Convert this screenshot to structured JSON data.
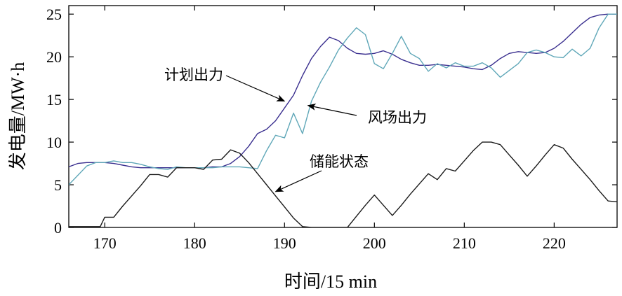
{
  "chart_data": {
    "type": "line",
    "xlabel": "时间/15 min",
    "ylabel": "发电量/MW·h",
    "xlim": [
      166,
      227
    ],
    "ylim": [
      0,
      26
    ],
    "xticks": [
      170,
      180,
      190,
      200,
      210,
      220
    ],
    "yticks": [
      0,
      5,
      10,
      15,
      20,
      25
    ],
    "grid": false,
    "legend": "none",
    "series": [
      {
        "name": "计划出力",
        "color": "#3a2f8f",
        "x": [
          166,
          167,
          168,
          169,
          170,
          171,
          172,
          173,
          174,
          175,
          176,
          177,
          178,
          179,
          180,
          181,
          182,
          183,
          184,
          185,
          186,
          187,
          188,
          189,
          190,
          191,
          192,
          193,
          194,
          195,
          196,
          197,
          198,
          199,
          200,
          201,
          202,
          203,
          204,
          205,
          206,
          207,
          208,
          209,
          210,
          211,
          212,
          213,
          214,
          215,
          216,
          217,
          218,
          219,
          220,
          221,
          222,
          223,
          224,
          225,
          226,
          227
        ],
        "y": [
          7.1,
          7.5,
          7.6,
          7.6,
          7.6,
          7.5,
          7.3,
          7.1,
          7.0,
          7.0,
          7.0,
          7.0,
          7.0,
          7.0,
          7.0,
          7.0,
          7.1,
          7.1,
          7.5,
          8.3,
          9.5,
          11.0,
          11.5,
          12.5,
          14.0,
          15.5,
          17.8,
          19.8,
          21.2,
          22.3,
          21.9,
          21.0,
          20.4,
          20.3,
          20.4,
          20.7,
          20.3,
          19.7,
          19.3,
          19.0,
          19.0,
          19.1,
          19.0,
          18.9,
          18.8,
          18.6,
          18.5,
          19.0,
          19.8,
          20.4,
          20.6,
          20.5,
          20.4,
          20.5,
          21.0,
          21.8,
          22.8,
          23.8,
          24.6,
          24.9,
          25.0,
          25.0
        ]
      },
      {
        "name": "风场出力",
        "color": "#5fa7b8",
        "x": [
          166,
          167,
          168,
          169,
          170,
          171,
          172,
          173,
          174,
          175,
          176,
          177,
          178,
          179,
          180,
          181,
          182,
          183,
          184,
          185,
          186,
          187,
          188,
          189,
          190,
          191,
          192,
          193,
          194,
          195,
          196,
          197,
          198,
          199,
          200,
          201,
          202,
          203,
          204,
          205,
          206,
          207,
          208,
          209,
          210,
          211,
          212,
          213,
          214,
          215,
          216,
          217,
          218,
          219,
          220,
          221,
          222,
          223,
          224,
          225,
          226,
          227
        ],
        "y": [
          5.0,
          6.1,
          7.2,
          7.6,
          7.6,
          7.8,
          7.6,
          7.6,
          7.4,
          7.1,
          6.9,
          6.8,
          7.1,
          7.0,
          7.0,
          7.0,
          7.0,
          7.1,
          7.1,
          7.1,
          7.0,
          6.9,
          9.0,
          10.8,
          10.5,
          13.4,
          11.0,
          14.8,
          17.0,
          18.8,
          20.8,
          22.2,
          23.4,
          22.6,
          19.2,
          18.6,
          20.4,
          22.4,
          20.4,
          19.8,
          18.3,
          19.2,
          18.7,
          19.3,
          18.9,
          18.9,
          19.3,
          18.7,
          17.6,
          18.4,
          19.2,
          20.5,
          20.8,
          20.5,
          20.0,
          19.9,
          20.9,
          20.1,
          21.0,
          23.4,
          25.0,
          25.0
        ]
      },
      {
        "name": "储能状态",
        "color": "#1a1a1a",
        "x": [
          166,
          167,
          168,
          169,
          169.5,
          170,
          170.5,
          171,
          172,
          173,
          174,
          175,
          176,
          177,
          178,
          179,
          180,
          181,
          182,
          183,
          184,
          185,
          186,
          187,
          188,
          189,
          190,
          191,
          192,
          193,
          194,
          195,
          196,
          197,
          198,
          199,
          200,
          201,
          202,
          203,
          204,
          205,
          206,
          207,
          208,
          209,
          210,
          211,
          212,
          213,
          214,
          215,
          216,
          217,
          218,
          219,
          220,
          221,
          222,
          223,
          224,
          225,
          226,
          227
        ],
        "y": [
          0.1,
          0.1,
          0.1,
          0.1,
          0.1,
          1.2,
          1.2,
          1.2,
          2.5,
          3.7,
          4.9,
          6.2,
          6.2,
          5.9,
          7.0,
          7.0,
          7.0,
          6.8,
          7.9,
          8.0,
          9.1,
          8.7,
          7.6,
          6.3,
          5.0,
          3.7,
          2.4,
          1.1,
          0.1,
          0.0,
          0.0,
          0.0,
          0.0,
          0.0,
          1.3,
          2.6,
          3.8,
          2.6,
          1.4,
          2.6,
          3.9,
          5.1,
          6.3,
          5.6,
          6.9,
          6.6,
          7.8,
          9.0,
          10.0,
          10.0,
          9.7,
          8.5,
          7.3,
          6.0,
          7.2,
          8.5,
          9.7,
          9.3,
          8.0,
          6.8,
          5.6,
          4.3,
          3.1,
          3.0
        ]
      }
    ],
    "annotations": [
      {
        "text": "计划出力",
        "target_x": 190.0,
        "target_y": 14.8
      },
      {
        "text": "风场出力",
        "target_x": 192.6,
        "target_y": 14.3
      },
      {
        "text": "储能状态",
        "target_x": 189.0,
        "target_y": 4.2
      }
    ]
  }
}
